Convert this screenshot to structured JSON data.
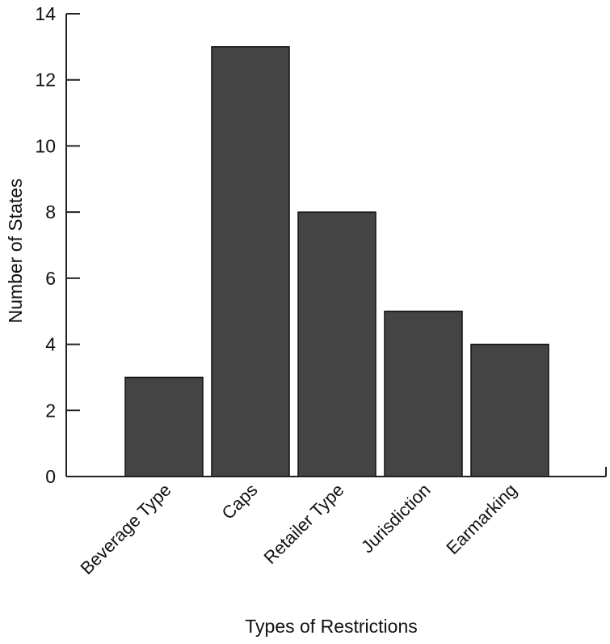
{
  "chart_data": {
    "type": "bar",
    "title": "",
    "xlabel": "Types of Restrictions",
    "ylabel": "Number of States",
    "categories": [
      "Beverage Type",
      "Caps",
      "Retailer Type",
      "Jurisdiction",
      "Earmarking"
    ],
    "values": [
      3,
      13,
      8,
      5,
      4
    ],
    "ylim": [
      0,
      14
    ],
    "yticks": [
      0,
      2,
      4,
      6,
      8,
      10,
      12,
      14
    ],
    "grid": false,
    "legend": "none",
    "bar_color": "#444444"
  }
}
